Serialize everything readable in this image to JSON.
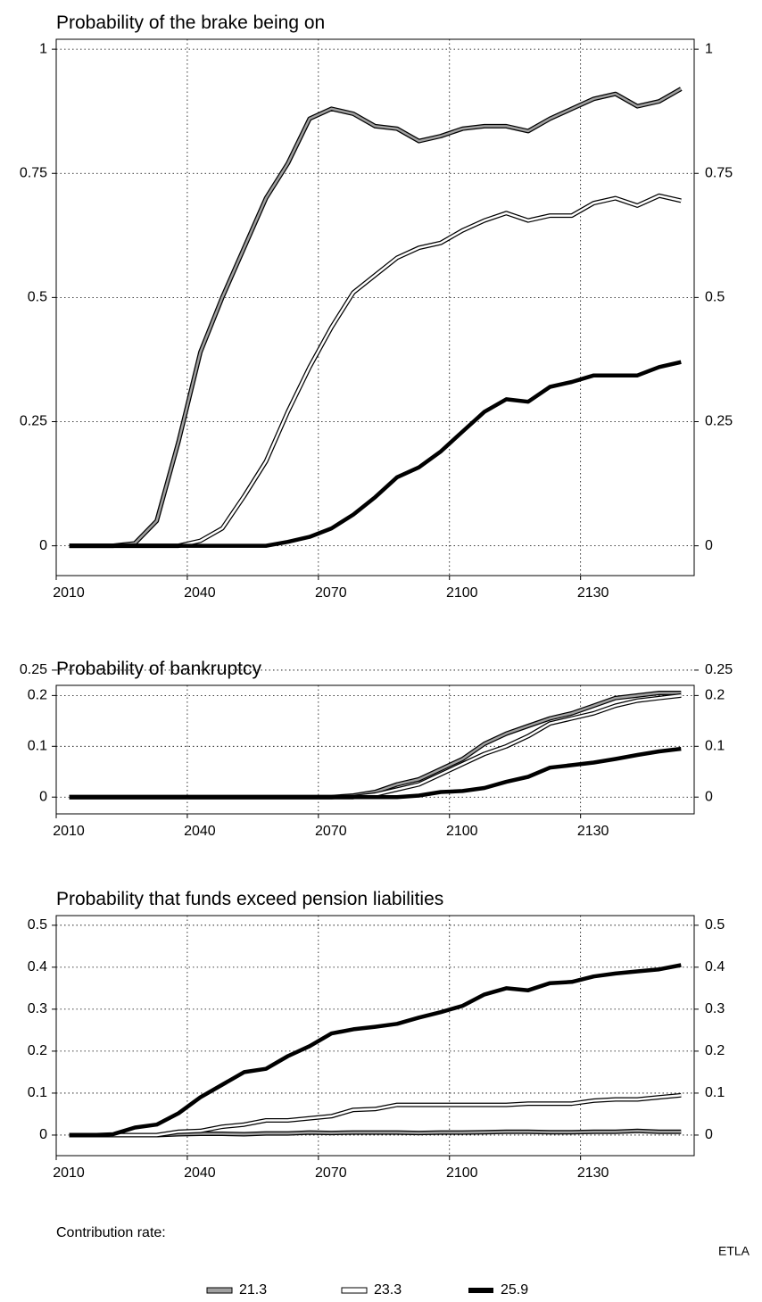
{
  "chart_data": [
    {
      "type": "line",
      "title": "Probability of the brake being on",
      "x": [
        2013,
        2018,
        2023,
        2028,
        2033,
        2038,
        2043,
        2048,
        2053,
        2058,
        2063,
        2068,
        2073,
        2078,
        2083,
        2088,
        2093,
        2098,
        2103,
        2108,
        2113,
        2118,
        2123,
        2128,
        2133,
        2138,
        2143,
        2148,
        2153
      ],
      "xlim": [
        2010,
        2156
      ],
      "xticks": [
        2010,
        2040,
        2070,
        2100,
        2130
      ],
      "ylim": [
        -0.06,
        1.02
      ],
      "yticks": [
        0,
        0.25,
        0.5,
        0.75,
        1
      ],
      "grid": true,
      "series": [
        {
          "name": "21.3",
          "color": "#a0a0a0",
          "outline": "#000000",
          "values": [
            0,
            0,
            0,
            0.005,
            0.05,
            0.21,
            0.39,
            0.5,
            0.6,
            0.7,
            0.77,
            0.86,
            0.88,
            0.87,
            0.845,
            0.84,
            0.815,
            0.825,
            0.84,
            0.845,
            0.845,
            0.835,
            0.86,
            0.88,
            0.9,
            0.91,
            0.885,
            0.895,
            0.92
          ]
        },
        {
          "name": "23.3",
          "color": "#ffffff",
          "outline": "#000000",
          "values": [
            0,
            0,
            0,
            0,
            0,
            0,
            0.01,
            0.035,
            0.1,
            0.17,
            0.27,
            0.36,
            0.44,
            0.51,
            0.545,
            0.58,
            0.6,
            0.61,
            0.635,
            0.655,
            0.67,
            0.655,
            0.665,
            0.665,
            0.69,
            0.7,
            0.685,
            0.705,
            0.695
          ]
        },
        {
          "name": "25.9",
          "color": "#000000",
          "values": [
            0,
            0,
            0,
            0,
            0,
            0,
            0,
            0,
            0,
            0,
            0.008,
            0.018,
            0.035,
            0.063,
            0.098,
            0.138,
            0.158,
            0.19,
            0.23,
            0.27,
            0.295,
            0.29,
            0.32,
            0.33,
            0.343,
            0.343,
            0.343,
            0.36,
            0.37
          ]
        }
      ]
    },
    {
      "type": "line",
      "title": "Probability of bankruptcy",
      "x": [
        2013,
        2018,
        2023,
        2028,
        2033,
        2038,
        2043,
        2048,
        2053,
        2058,
        2063,
        2068,
        2073,
        2078,
        2083,
        2088,
        2093,
        2098,
        2103,
        2108,
        2113,
        2118,
        2123,
        2128,
        2133,
        2138,
        2143,
        2148,
        2153
      ],
      "xlim": [
        2010,
        2156
      ],
      "xticks": [
        2010,
        2040,
        2070,
        2100,
        2130
      ],
      "ylim": [
        -0.033,
        0.22
      ],
      "yticks": [
        0,
        0.1,
        0.2,
        0.25
      ],
      "grid": true,
      "series": [
        {
          "name": "21.3",
          "color": "#a0a0a0",
          "outline": "#000000",
          "values": [
            0,
            0,
            0,
            0,
            0,
            0,
            0,
            0,
            0,
            0,
            0,
            0,
            0,
            0.003,
            0.01,
            0.025,
            0.035,
            0.055,
            0.075,
            0.105,
            0.125,
            0.14,
            0.155,
            0.165,
            0.18,
            0.195,
            0.2,
            0.205,
            0.205
          ]
        },
        {
          "name": "23.3",
          "color": "#ffffff",
          "outline": "#000000",
          "values": [
            0,
            0,
            0,
            0,
            0,
            0,
            0,
            0,
            0,
            0,
            0,
            0,
            0,
            0,
            0.005,
            0.015,
            0.025,
            0.045,
            0.065,
            0.085,
            0.1,
            0.12,
            0.145,
            0.155,
            0.165,
            0.18,
            0.19,
            0.195,
            0.2
          ]
        },
        {
          "name": "25.9",
          "color": "#000000",
          "values": [
            0,
            0,
            0,
            0,
            0,
            0,
            0,
            0,
            0,
            0,
            0,
            0,
            0,
            0,
            0,
            0,
            0.003,
            0.01,
            0.012,
            0.018,
            0.03,
            0.04,
            0.058,
            0.063,
            0.068,
            0.075,
            0.083,
            0.09,
            0.095
          ]
        }
      ]
    },
    {
      "type": "line",
      "title": "Probability that funds exceed pension liabilities",
      "x": [
        2013,
        2018,
        2023,
        2028,
        2033,
        2038,
        2043,
        2048,
        2053,
        2058,
        2063,
        2068,
        2073,
        2078,
        2083,
        2088,
        2093,
        2098,
        2103,
        2108,
        2113,
        2118,
        2123,
        2128,
        2133,
        2138,
        2143,
        2148,
        2153
      ],
      "xlim": [
        2010,
        2156
      ],
      "xticks": [
        2010,
        2040,
        2070,
        2100,
        2130
      ],
      "ylim": [
        -0.049,
        0.523
      ],
      "yticks": [
        0,
        0.1,
        0.2,
        0.3,
        0.4,
        0.5
      ],
      "grid": true,
      "series": [
        {
          "name": "21.3",
          "color": "#a0a0a0",
          "outline": "#000000",
          "values": [
            0,
            0,
            0,
            0,
            0,
            0.002,
            0.003,
            0.003,
            0.002,
            0.004,
            0.004,
            0.006,
            0.005,
            0.006,
            0.006,
            0.006,
            0.005,
            0.006,
            0.006,
            0.007,
            0.008,
            0.008,
            0.007,
            0.007,
            0.008,
            0.008,
            0.01,
            0.008,
            0.008
          ]
        },
        {
          "name": "23.3",
          "color": "#ffffff",
          "outline": "#000000",
          "values": [
            0,
            0,
            0,
            0,
            0,
            0.008,
            0.01,
            0.02,
            0.025,
            0.035,
            0.035,
            0.04,
            0.045,
            0.06,
            0.062,
            0.072,
            0.072,
            0.072,
            0.072,
            0.072,
            0.072,
            0.075,
            0.075,
            0.075,
            0.082,
            0.085,
            0.085,
            0.09,
            0.095
          ]
        },
        {
          "name": "25.9",
          "color": "#000000",
          "values": [
            0,
            0,
            0.002,
            0.018,
            0.025,
            0.052,
            0.09,
            0.12,
            0.15,
            0.158,
            0.188,
            0.212,
            0.242,
            0.252,
            0.258,
            0.265,
            0.28,
            0.293,
            0.308,
            0.335,
            0.35,
            0.345,
            0.362,
            0.365,
            0.378,
            0.385,
            0.39,
            0.395,
            0.405
          ]
        }
      ]
    }
  ],
  "legend": {
    "title": "Contribution rate:"
  },
  "source": "ETLA"
}
